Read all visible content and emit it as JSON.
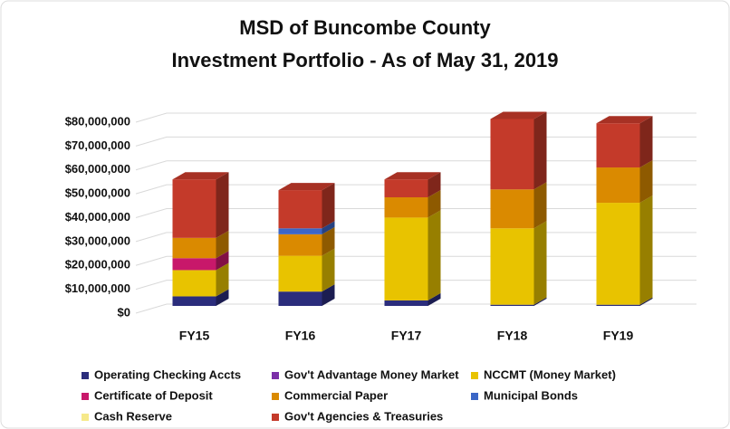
{
  "chart_data": {
    "type": "bar3d_stacked",
    "title": "MSD of Buncombe County",
    "subtitle": "Investment Portfolio - As of May 31, 2019",
    "categories": [
      "FY15",
      "FY16",
      "FY17",
      "FY18",
      "FY19"
    ],
    "series": [
      {
        "name": "Operating Checking Accts",
        "color": "#2b2d7c",
        "values": [
          4000000,
          6000000,
          2300000,
          500000,
          500000
        ]
      },
      {
        "name": "Gov't Advantage Money Market",
        "color": "#7b2fa8",
        "values": [
          0,
          0,
          0,
          0,
          0
        ]
      },
      {
        "name": "NCCMT (Money Market)",
        "color": "#e8c300",
        "values": [
          11000000,
          15000000,
          34700000,
          32000000,
          42700000
        ]
      },
      {
        "name": "Certificate of Deposit",
        "color": "#c8186a",
        "values": [
          5000000,
          0,
          0,
          0,
          0
        ]
      },
      {
        "name": "Commercial  Paper",
        "color": "#da8a00",
        "values": [
          8500000,
          9000000,
          8500000,
          16300000,
          14800000
        ]
      },
      {
        "name": "Municipal Bonds",
        "color": "#3b66c6",
        "values": [
          0,
          2500000,
          0,
          0,
          0
        ]
      },
      {
        "name": "Cash  Reserve",
        "color": "#f6e98a",
        "values": [
          0,
          0,
          0,
          0,
          0
        ]
      },
      {
        "name": "Gov't Agencies & Treasuries",
        "color": "#c43a2a",
        "values": [
          24500000,
          16000000,
          7500000,
          29500000,
          18500000
        ]
      }
    ],
    "ylim": [
      0,
      80000000
    ],
    "yticks": [
      {
        "value": 0,
        "label": "$0"
      },
      {
        "value": 10000000,
        "label": "$10,000,000"
      },
      {
        "value": 20000000,
        "label": "$20,000,000"
      },
      {
        "value": 30000000,
        "label": "$30,000,000"
      },
      {
        "value": 40000000,
        "label": "$40,000,000"
      },
      {
        "value": 50000000,
        "label": "$50,000,000"
      },
      {
        "value": 60000000,
        "label": "$60,000,000"
      },
      {
        "value": 70000000,
        "label": "$70,000,000"
      },
      {
        "value": 80000000,
        "label": "$80,000,000"
      }
    ],
    "grid": true
  }
}
